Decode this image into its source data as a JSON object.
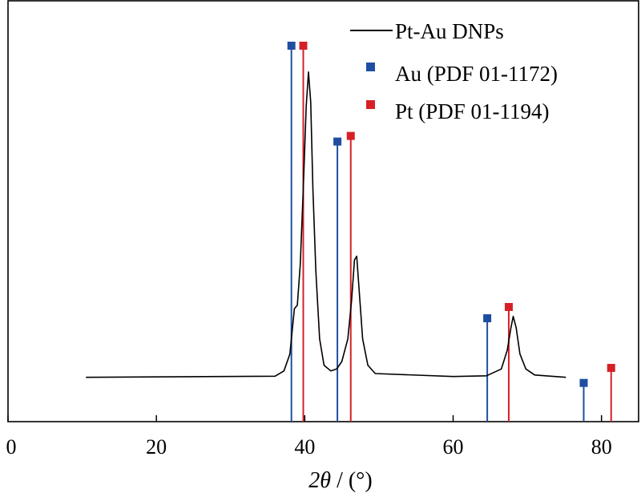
{
  "chart_data": {
    "type": "line",
    "xlabel": {
      "symbol": "2θ",
      "unit": " / (°)"
    },
    "xlim": [
      0,
      85
    ],
    "xticks": [
      0,
      20,
      40,
      60,
      80
    ],
    "ylim": [
      0,
      1
    ],
    "legend_position": "top-right",
    "series": [
      {
        "name": "Pt-Au DNPs",
        "color": "#000000",
        "points": [
          [
            10.5,
            0.118
          ],
          [
            36.0,
            0.121
          ],
          [
            37.2,
            0.135
          ],
          [
            38.0,
            0.18
          ],
          [
            38.6,
            0.3
          ],
          [
            39.0,
            0.31
          ],
          [
            39.4,
            0.42
          ],
          [
            39.8,
            0.62
          ],
          [
            40.2,
            0.84
          ],
          [
            40.5,
            0.93
          ],
          [
            40.8,
            0.85
          ],
          [
            41.1,
            0.62
          ],
          [
            41.5,
            0.4
          ],
          [
            42.0,
            0.22
          ],
          [
            42.6,
            0.15
          ],
          [
            43.5,
            0.135
          ],
          [
            44.3,
            0.14
          ],
          [
            45.0,
            0.16
          ],
          [
            45.8,
            0.22
          ],
          [
            46.3,
            0.32
          ],
          [
            46.7,
            0.43
          ],
          [
            47.0,
            0.44
          ],
          [
            47.3,
            0.36
          ],
          [
            47.8,
            0.22
          ],
          [
            48.5,
            0.15
          ],
          [
            49.5,
            0.128
          ],
          [
            60.0,
            0.12
          ],
          [
            64.5,
            0.122
          ],
          [
            66.5,
            0.14
          ],
          [
            67.3,
            0.19
          ],
          [
            67.8,
            0.25
          ],
          [
            68.1,
            0.28
          ],
          [
            68.5,
            0.25
          ],
          [
            69.0,
            0.18
          ],
          [
            69.8,
            0.14
          ],
          [
            71.0,
            0.124
          ],
          [
            75.2,
            0.118
          ]
        ]
      },
      {
        "name": "Au (PDF 01-1172)",
        "color": "#1f4ea1",
        "sticks": [
          {
            "x": 38.2,
            "y": 1.0
          },
          {
            "x": 44.4,
            "y": 0.745
          },
          {
            "x": 64.6,
            "y": 0.275
          },
          {
            "x": 77.6,
            "y": 0.103
          }
        ]
      },
      {
        "name": "Pt  (PDF 01-1194)",
        "color": "#d62027",
        "sticks": [
          {
            "x": 39.8,
            "y": 1.0
          },
          {
            "x": 46.2,
            "y": 0.76
          },
          {
            "x": 67.5,
            "y": 0.305
          },
          {
            "x": 81.3,
            "y": 0.143
          }
        ]
      }
    ]
  }
}
